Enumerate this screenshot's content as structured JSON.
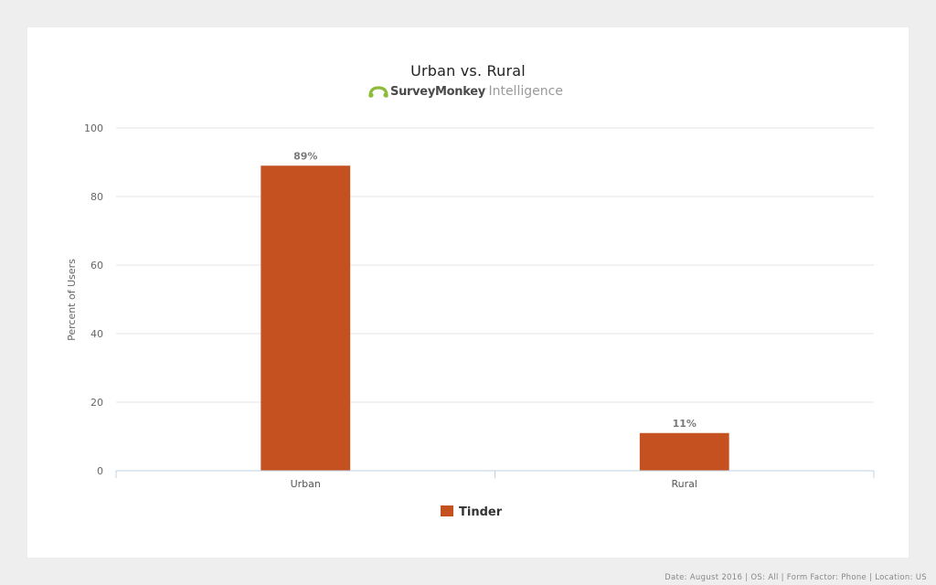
{
  "header": {
    "title": "Urban vs. Rural",
    "brand_name": "SurveyMonkey",
    "brand_mark": "·",
    "brand_product": "Intelligence",
    "brand_icon": "surveymonkey-logo-icon"
  },
  "footer": {
    "note": "Date: August 2016 | OS: All | Form Factor: Phone | Location: US"
  },
  "colors": {
    "bar": "#c65120",
    "grid": "#e6e6e6",
    "axis": "#c0d0e0",
    "brand_green": "#8dbb3a"
  },
  "chart_data": {
    "type": "bar",
    "title": "Urban vs. Rural",
    "categories": [
      "Urban",
      "Rural"
    ],
    "series": [
      {
        "name": "Tinder",
        "values": [
          89,
          11
        ],
        "labels": [
          "89%",
          "11%"
        ]
      }
    ],
    "ylabel": "Percent of Users",
    "xlabel": "",
    "ylim": [
      0,
      100
    ],
    "yticks": [
      0,
      20,
      40,
      60,
      80,
      100
    ],
    "grid": true,
    "legend": "bottom-center"
  }
}
